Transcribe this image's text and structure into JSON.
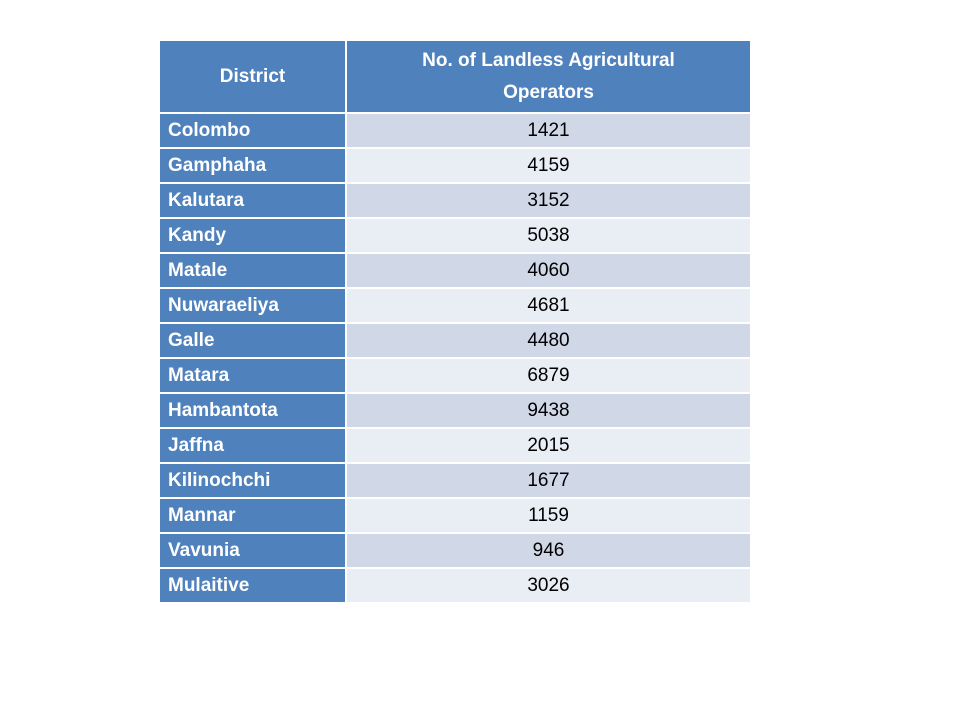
{
  "table": {
    "header": [
      "District",
      "No. of Landless Agricultural Operators"
    ],
    "rows": [
      [
        "Colombo",
        1421
      ],
      [
        "Gamphaha",
        4159
      ],
      [
        "Kalutara",
        3152
      ],
      [
        "Kandy",
        5038
      ],
      [
        "Matale",
        4060
      ],
      [
        "Nuwaraeliya",
        4681
      ],
      [
        "Galle",
        4480
      ],
      [
        "Matara",
        6879
      ],
      [
        "Hambantota",
        9438
      ],
      [
        "Jaffna",
        2015
      ],
      [
        "Kilinochchi",
        1677
      ],
      [
        "Mannar",
        1159
      ],
      [
        "Vavunia",
        946
      ],
      [
        "Mulaitive",
        3026
      ]
    ]
  }
}
